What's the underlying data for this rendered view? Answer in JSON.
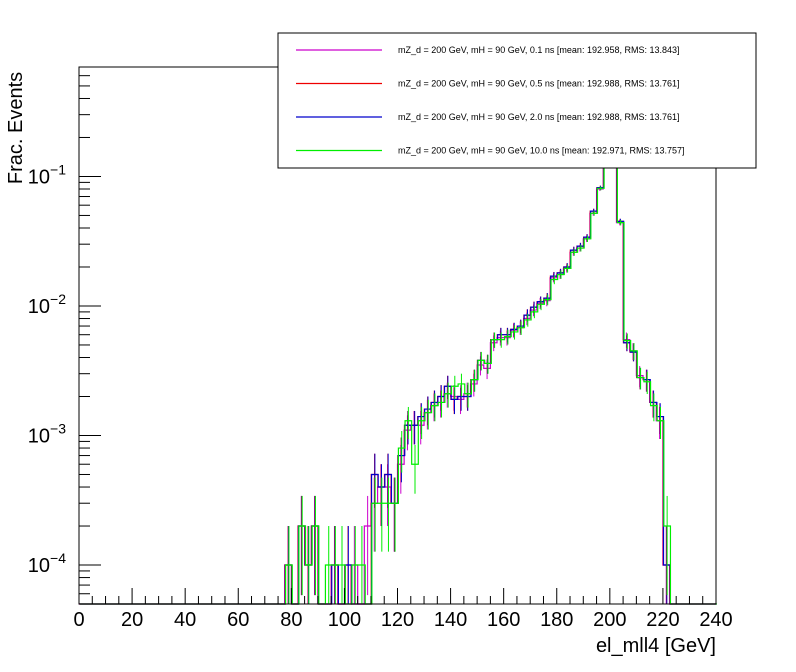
{
  "chart_data": {
    "type": "histogram",
    "xlabel": "el_mll4 [GeV]",
    "ylabel": "Frac. Events",
    "xlim": [
      0,
      240
    ],
    "ylim": [
      5e-05,
      0.7
    ],
    "yscale": "log",
    "bin_width": 2.5,
    "xticks": [
      0,
      20,
      40,
      60,
      80,
      100,
      120,
      140,
      160,
      180,
      200,
      220,
      240
    ],
    "ytick_labels": [
      {
        "mant": "10",
        "exp": "−4",
        "value": 0.0001
      },
      {
        "mant": "10",
        "exp": "−3",
        "value": 0.001
      },
      {
        "mant": "10",
        "exp": "−2",
        "value": 0.01
      },
      {
        "mant": "10",
        "exp": "−1",
        "value": 0.1
      }
    ],
    "legend": {
      "position": "top-right",
      "entries": [
        "mZ_d = 200 GeV, mH = 90 GeV, 0.1 ns [mean: 192.958, RMS: 13.843]",
        "mZ_d = 200 GeV, mH = 90 GeV, 0.5 ns [mean: 192.988, RMS: 13.761]",
        "mZ_d = 200 GeV, mH = 90 GeV, 2.0 ns [mean: 192.988, RMS: 13.761]",
        "mZ_d = 200 GeV, mH = 90 GeV, 10.0 ns [mean: 192.971, RMS: 13.757]"
      ]
    },
    "series": [
      {
        "name": "mZ_d = 200 GeV, mH = 90 GeV, 0.1 ns [mean: 192.958, RMS: 13.843]",
        "color": "#cc00cc",
        "dx": 0.0,
        "bins": [
          {
            "x": 78.75,
            "y": 0.0001
          },
          {
            "x": 83.75,
            "y": 0.0002
          },
          {
            "x": 86.25,
            "y": 0.0001
          },
          {
            "x": 88.75,
            "y": 0.0002
          },
          {
            "x": 96.25,
            "y": 0.0001
          },
          {
            "x": 103.75,
            "y": 0.0001
          },
          {
            "x": 108.75,
            "y": 0.0002
          },
          {
            "x": 111.25,
            "y": 0.0003
          },
          {
            "x": 113.75,
            "y": 0.0004
          },
          {
            "x": 116.25,
            "y": 0.0004
          },
          {
            "x": 118.75,
            "y": 0.0003
          },
          {
            "x": 121.25,
            "y": 0.0006
          },
          {
            "x": 123.75,
            "y": 0.0011
          },
          {
            "x": 126.25,
            "y": 0.0012
          },
          {
            "x": 128.75,
            "y": 0.0012
          },
          {
            "x": 131.25,
            "y": 0.0015
          },
          {
            "x": 133.75,
            "y": 0.0017
          },
          {
            "x": 136.25,
            "y": 0.0018
          },
          {
            "x": 138.75,
            "y": 0.0021
          },
          {
            "x": 141.25,
            "y": 0.002
          },
          {
            "x": 143.75,
            "y": 0.0019
          },
          {
            "x": 146.25,
            "y": 0.0021
          },
          {
            "x": 148.75,
            "y": 0.0025
          },
          {
            "x": 151.25,
            "y": 0.0035
          },
          {
            "x": 153.75,
            "y": 0.0033
          },
          {
            "x": 156.25,
            "y": 0.0052
          },
          {
            "x": 158.75,
            "y": 0.0057
          },
          {
            "x": 161.25,
            "y": 0.0057
          },
          {
            "x": 163.75,
            "y": 0.0065
          },
          {
            "x": 166.25,
            "y": 0.0068
          },
          {
            "x": 168.75,
            "y": 0.008
          },
          {
            "x": 171.25,
            "y": 0.0093
          },
          {
            "x": 173.75,
            "y": 0.0105
          },
          {
            "x": 176.25,
            "y": 0.011
          },
          {
            "x": 178.75,
            "y": 0.0165
          },
          {
            "x": 181.25,
            "y": 0.0175
          },
          {
            "x": 183.75,
            "y": 0.0195
          },
          {
            "x": 186.25,
            "y": 0.026
          },
          {
            "x": 188.75,
            "y": 0.028
          },
          {
            "x": 191.25,
            "y": 0.033
          },
          {
            "x": 193.75,
            "y": 0.052
          },
          {
            "x": 196.25,
            "y": 0.08
          },
          {
            "x": 198.75,
            "y": 0.12
          },
          {
            "x": 201.25,
            "y": 0.3
          },
          {
            "x": 203.75,
            "y": 0.044
          },
          {
            "x": 206.25,
            "y": 0.0055
          },
          {
            "x": 208.75,
            "y": 0.0045
          },
          {
            "x": 211.25,
            "y": 0.0029
          },
          {
            "x": 213.75,
            "y": 0.0027
          },
          {
            "x": 216.25,
            "y": 0.0018
          },
          {
            "x": 218.75,
            "y": 0.0013
          },
          {
            "x": 221.25,
            "y": 0.0001
          }
        ]
      },
      {
        "name": "mZ_d = 200 GeV, mH = 90 GeV, 0.5 ns [mean: 192.988, RMS: 13.761]",
        "color": "#ee0000",
        "dx": 0.3,
        "bins": [
          {
            "x": 78.75,
            "y": 0.0001
          },
          {
            "x": 83.75,
            "y": 0.0002
          },
          {
            "x": 86.25,
            "y": 0.0001
          },
          {
            "x": 88.75,
            "y": 0.0002
          },
          {
            "x": 96.25,
            "y": 0.0001
          },
          {
            "x": 101.25,
            "y": 0.0001
          },
          {
            "x": 111.25,
            "y": 0.0005
          },
          {
            "x": 113.75,
            "y": 0.0004
          },
          {
            "x": 116.25,
            "y": 0.0005
          },
          {
            "x": 118.75,
            "y": 0.0003
          },
          {
            "x": 121.25,
            "y": 0.0007
          },
          {
            "x": 123.75,
            "y": 0.0012
          },
          {
            "x": 126.25,
            "y": 0.0012
          },
          {
            "x": 128.75,
            "y": 0.0014
          },
          {
            "x": 131.25,
            "y": 0.0016
          },
          {
            "x": 133.75,
            "y": 0.0018
          },
          {
            "x": 136.25,
            "y": 0.002
          },
          {
            "x": 138.75,
            "y": 0.0024
          },
          {
            "x": 141.25,
            "y": 0.0019
          },
          {
            "x": 143.75,
            "y": 0.002
          },
          {
            "x": 146.25,
            "y": 0.002
          },
          {
            "x": 148.75,
            "y": 0.0027
          },
          {
            "x": 151.25,
            "y": 0.0038
          },
          {
            "x": 153.75,
            "y": 0.0036
          },
          {
            "x": 156.25,
            "y": 0.0055
          },
          {
            "x": 158.75,
            "y": 0.006
          },
          {
            "x": 161.25,
            "y": 0.006
          },
          {
            "x": 163.75,
            "y": 0.0066
          },
          {
            "x": 166.25,
            "y": 0.007
          },
          {
            "x": 168.75,
            "y": 0.0085
          },
          {
            "x": 171.25,
            "y": 0.0098
          },
          {
            "x": 173.75,
            "y": 0.0108
          },
          {
            "x": 176.25,
            "y": 0.0115
          },
          {
            "x": 178.75,
            "y": 0.017
          },
          {
            "x": 181.25,
            "y": 0.018
          },
          {
            "x": 183.75,
            "y": 0.02
          },
          {
            "x": 186.25,
            "y": 0.027
          },
          {
            "x": 188.75,
            "y": 0.029
          },
          {
            "x": 191.25,
            "y": 0.034
          },
          {
            "x": 193.75,
            "y": 0.054
          },
          {
            "x": 196.25,
            "y": 0.082
          },
          {
            "x": 198.75,
            "y": 0.12
          },
          {
            "x": 201.25,
            "y": 0.31
          },
          {
            "x": 203.75,
            "y": 0.045
          },
          {
            "x": 206.25,
            "y": 0.0052
          },
          {
            "x": 208.75,
            "y": 0.0044
          },
          {
            "x": 211.25,
            "y": 0.0028
          },
          {
            "x": 213.75,
            "y": 0.0027
          },
          {
            "x": 216.25,
            "y": 0.0018
          },
          {
            "x": 218.75,
            "y": 0.0014
          },
          {
            "x": 221.25,
            "y": 0.0001
          }
        ]
      },
      {
        "name": "mZ_d = 200 GeV, mH = 90 GeV, 2.0 ns [mean: 192.988, RMS: 13.761]",
        "color": "#0000cc",
        "dx": 0.6,
        "bins": [
          {
            "x": 78.75,
            "y": 0.0001
          },
          {
            "x": 83.75,
            "y": 0.0002
          },
          {
            "x": 86.25,
            "y": 0.0001
          },
          {
            "x": 88.75,
            "y": 0.0002
          },
          {
            "x": 96.25,
            "y": 0.0001
          },
          {
            "x": 101.25,
            "y": 0.0001
          },
          {
            "x": 111.25,
            "y": 0.0005
          },
          {
            "x": 113.75,
            "y": 0.0004
          },
          {
            "x": 116.25,
            "y": 0.0005
          },
          {
            "x": 118.75,
            "y": 0.0003
          },
          {
            "x": 121.25,
            "y": 0.0007
          },
          {
            "x": 123.75,
            "y": 0.0012
          },
          {
            "x": 126.25,
            "y": 0.0012
          },
          {
            "x": 128.75,
            "y": 0.0014
          },
          {
            "x": 131.25,
            "y": 0.0016
          },
          {
            "x": 133.75,
            "y": 0.0018
          },
          {
            "x": 136.25,
            "y": 0.002
          },
          {
            "x": 138.75,
            "y": 0.0024
          },
          {
            "x": 141.25,
            "y": 0.0019
          },
          {
            "x": 143.75,
            "y": 0.002
          },
          {
            "x": 146.25,
            "y": 0.002
          },
          {
            "x": 148.75,
            "y": 0.0027
          },
          {
            "x": 151.25,
            "y": 0.0038
          },
          {
            "x": 153.75,
            "y": 0.0036
          },
          {
            "x": 156.25,
            "y": 0.0055
          },
          {
            "x": 158.75,
            "y": 0.006
          },
          {
            "x": 161.25,
            "y": 0.006
          },
          {
            "x": 163.75,
            "y": 0.0066
          },
          {
            "x": 166.25,
            "y": 0.007
          },
          {
            "x": 168.75,
            "y": 0.0085
          },
          {
            "x": 171.25,
            "y": 0.0098
          },
          {
            "x": 173.75,
            "y": 0.0108
          },
          {
            "x": 176.25,
            "y": 0.0115
          },
          {
            "x": 178.75,
            "y": 0.017
          },
          {
            "x": 181.25,
            "y": 0.018
          },
          {
            "x": 183.75,
            "y": 0.02
          },
          {
            "x": 186.25,
            "y": 0.027
          },
          {
            "x": 188.75,
            "y": 0.029
          },
          {
            "x": 191.25,
            "y": 0.034
          },
          {
            "x": 193.75,
            "y": 0.054
          },
          {
            "x": 196.25,
            "y": 0.082
          },
          {
            "x": 198.75,
            "y": 0.12
          },
          {
            "x": 201.25,
            "y": 0.31
          },
          {
            "x": 203.75,
            "y": 0.045
          },
          {
            "x": 206.25,
            "y": 0.0052
          },
          {
            "x": 208.75,
            "y": 0.0044
          },
          {
            "x": 211.25,
            "y": 0.0028
          },
          {
            "x": 213.75,
            "y": 0.0027
          },
          {
            "x": 216.25,
            "y": 0.0018
          },
          {
            "x": 218.75,
            "y": 0.0014
          },
          {
            "x": 221.25,
            "y": 0.0001
          }
        ]
      },
      {
        "name": "mZ_d = 200 GeV, mH = 90 GeV, 10.0 ns [mean: 192.971, RMS: 13.757]",
        "color": "#00ee00",
        "dx": 0.9,
        "bins": [
          {
            "x": 78.75,
            "y": 0.0001
          },
          {
            "x": 83.75,
            "y": 0.0002
          },
          {
            "x": 86.25,
            "y": 0.0001
          },
          {
            "x": 88.75,
            "y": 0.0002
          },
          {
            "x": 93.75,
            "y": 0.0001
          },
          {
            "x": 96.25,
            "y": 0.0001
          },
          {
            "x": 98.75,
            "y": 0.0001
          },
          {
            "x": 103.75,
            "y": 0.0001
          },
          {
            "x": 106.25,
            "y": 0.0001
          },
          {
            "x": 111.25,
            "y": 0.0003
          },
          {
            "x": 113.75,
            "y": 0.0003
          },
          {
            "x": 116.25,
            "y": 0.0003
          },
          {
            "x": 118.75,
            "y": 0.0003
          },
          {
            "x": 121.25,
            "y": 0.0008
          },
          {
            "x": 123.75,
            "y": 0.0013
          },
          {
            "x": 126.25,
            "y": 0.0006
          },
          {
            "x": 128.75,
            "y": 0.0013
          },
          {
            "x": 131.25,
            "y": 0.0015
          },
          {
            "x": 133.75,
            "y": 0.0017
          },
          {
            "x": 136.25,
            "y": 0.0018
          },
          {
            "x": 138.75,
            "y": 0.0021
          },
          {
            "x": 141.25,
            "y": 0.0024
          },
          {
            "x": 143.75,
            "y": 0.0025
          },
          {
            "x": 146.25,
            "y": 0.0021
          },
          {
            "x": 148.75,
            "y": 0.0027
          },
          {
            "x": 151.25,
            "y": 0.0038
          },
          {
            "x": 153.75,
            "y": 0.0036
          },
          {
            "x": 156.25,
            "y": 0.0055
          },
          {
            "x": 158.75,
            "y": 0.0055
          },
          {
            "x": 161.25,
            "y": 0.0058
          },
          {
            "x": 163.75,
            "y": 0.0063
          },
          {
            "x": 166.25,
            "y": 0.0068
          },
          {
            "x": 168.75,
            "y": 0.0078
          },
          {
            "x": 171.25,
            "y": 0.009
          },
          {
            "x": 173.75,
            "y": 0.0103
          },
          {
            "x": 176.25,
            "y": 0.0112
          },
          {
            "x": 178.75,
            "y": 0.016
          },
          {
            "x": 181.25,
            "y": 0.0175
          },
          {
            "x": 183.75,
            "y": 0.0195
          },
          {
            "x": 186.25,
            "y": 0.026
          },
          {
            "x": 188.75,
            "y": 0.028
          },
          {
            "x": 191.25,
            "y": 0.033
          },
          {
            "x": 193.75,
            "y": 0.052
          },
          {
            "x": 196.25,
            "y": 0.081
          },
          {
            "x": 198.75,
            "y": 0.12
          },
          {
            "x": 201.25,
            "y": 0.31
          },
          {
            "x": 203.75,
            "y": 0.044
          },
          {
            "x": 206.25,
            "y": 0.0054
          },
          {
            "x": 208.75,
            "y": 0.0045
          },
          {
            "x": 211.25,
            "y": 0.0028
          },
          {
            "x": 213.75,
            "y": 0.0026
          },
          {
            "x": 216.25,
            "y": 0.0017
          },
          {
            "x": 218.75,
            "y": 0.0013
          },
          {
            "x": 221.25,
            "y": 0.0002
          }
        ]
      }
    ]
  }
}
